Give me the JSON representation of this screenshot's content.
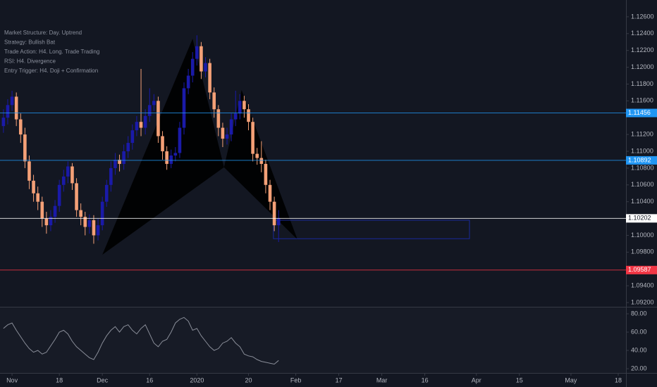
{
  "chart_data": {
    "type": "candlestick",
    "annotations": [
      "Market Structure: Day. Uptrend",
      "Strategy: Bullish Bat",
      "Trade Action: H4. Long. Trade Trading",
      "RSI: H4. Divergence",
      "Entry Trigger: H4. Doji + Confirmation"
    ],
    "x": [
      -2,
      -1,
      0,
      1,
      2,
      3,
      4,
      5,
      6,
      7,
      8,
      9,
      10,
      11,
      12,
      13,
      14,
      15,
      16,
      17,
      18,
      19,
      20,
      21,
      22,
      23,
      24,
      25,
      26,
      27,
      28,
      29,
      30,
      31,
      32,
      33,
      34,
      35,
      36,
      37,
      38,
      39,
      40,
      41,
      42,
      43,
      44,
      45,
      46,
      47,
      48,
      49,
      50,
      51,
      52,
      53,
      54,
      55,
      56,
      57,
      58,
      59,
      60,
      61,
      62
    ],
    "open": [
      1.113,
      1.114,
      1.1155,
      1.1165,
      1.1138,
      1.112,
      1.1088,
      1.1065,
      1.105,
      1.104,
      1.102,
      1.1012,
      1.1022,
      1.1035,
      1.106,
      1.107,
      1.1082,
      1.1062,
      1.103,
      1.1022,
      1.101,
      1.1018,
      1.1,
      1.1012,
      1.104,
      1.106,
      1.108,
      1.109,
      1.1085,
      1.11,
      1.111,
      1.1125,
      1.1135,
      1.1128,
      1.1142,
      1.1155,
      1.116,
      1.1118,
      1.11,
      1.1085,
      1.1095,
      1.1098,
      1.1128,
      1.1175,
      1.119,
      1.121,
      1.1225,
      1.1195,
      1.1205,
      1.117,
      1.115,
      1.1128,
      1.1115,
      1.112,
      1.1138,
      1.1145,
      1.116,
      1.115,
      1.1135,
      1.1097,
      1.1092,
      1.1085,
      1.106,
      1.104,
      1.1012
    ],
    "high": [
      1.115,
      1.1162,
      1.1172,
      1.117,
      1.1145,
      1.1128,
      1.1095,
      1.1072,
      1.1058,
      1.1046,
      1.1028,
      1.103,
      1.1042,
      1.1066,
      1.1078,
      1.1088,
      1.1086,
      1.1068,
      1.1038,
      1.1028,
      1.1025,
      1.1024,
      1.102,
      1.1046,
      1.1066,
      1.1088,
      1.1098,
      1.1096,
      1.1108,
      1.1118,
      1.1132,
      1.1142,
      1.1198,
      1.115,
      1.1175,
      1.1168,
      1.1165,
      1.1124,
      1.1106,
      1.1102,
      1.1105,
      1.1135,
      1.1182,
      1.1198,
      1.1218,
      1.1238,
      1.123,
      1.1212,
      1.121,
      1.1176,
      1.1155,
      1.1134,
      1.1128,
      1.1145,
      1.1172,
      1.1168,
      1.1166,
      1.1156,
      1.114,
      1.1104,
      1.1112,
      1.109,
      1.1066,
      1.1046,
      1.103
    ],
    "low": [
      1.1122,
      1.1132,
      1.1148,
      1.113,
      1.111,
      1.108,
      1.1055,
      1.104,
      1.103,
      1.101,
      1.1002,
      1.1005,
      1.1015,
      1.1028,
      1.1052,
      1.1062,
      1.1054,
      1.1022,
      1.1012,
      1.1,
      1.1002,
      1.099,
      1.0994,
      1.1006,
      1.1034,
      1.1052,
      1.1072,
      1.1076,
      1.1078,
      1.1092,
      1.1102,
      1.1118,
      1.1118,
      1.112,
      1.1135,
      1.1148,
      1.111,
      1.109,
      1.1078,
      1.108,
      1.1088,
      1.1092,
      1.112,
      1.1168,
      1.1182,
      1.1202,
      1.1186,
      1.1188,
      1.1162,
      1.114,
      1.1118,
      1.1105,
      1.1108,
      1.1112,
      1.113,
      1.1138,
      1.114,
      1.1125,
      1.1088,
      1.1084,
      1.1075,
      1.105,
      1.103,
      1.1005,
      1.0992
    ],
    "close": [
      1.114,
      1.1155,
      1.1165,
      1.1138,
      1.112,
      1.1088,
      1.1065,
      1.105,
      1.104,
      1.102,
      1.1012,
      1.1022,
      1.1035,
      1.106,
      1.107,
      1.1082,
      1.1062,
      1.103,
      1.1022,
      1.101,
      1.1018,
      1.1,
      1.1012,
      1.104,
      1.106,
      1.108,
      1.109,
      1.1085,
      1.11,
      1.111,
      1.1125,
      1.1135,
      1.1128,
      1.1142,
      1.1155,
      1.116,
      1.1118,
      1.11,
      1.1085,
      1.1095,
      1.1098,
      1.1128,
      1.1175,
      1.119,
      1.121,
      1.1225,
      1.1195,
      1.1205,
      1.117,
      1.115,
      1.1128,
      1.1115,
      1.112,
      1.1138,
      1.1145,
      1.116,
      1.115,
      1.1135,
      1.1097,
      1.1092,
      1.1085,
      1.106,
      1.104,
      1.1012,
      1.10202
    ],
    "up_color": "#1a1aa8",
    "down_color": "#f4a077",
    "xlim": [
      -2.8,
      142.8
    ],
    "xticks": [
      {
        "value": 0,
        "label": "Nov"
      },
      {
        "value": 11,
        "label": "18"
      },
      {
        "value": 21,
        "label": "Dec"
      },
      {
        "value": 32,
        "label": "16"
      },
      {
        "value": 43,
        "label": "2020"
      },
      {
        "value": 55,
        "label": "20"
      },
      {
        "value": 66,
        "label": "Feb"
      },
      {
        "value": 76,
        "label": "17"
      },
      {
        "value": 86,
        "label": "Mar"
      },
      {
        "value": 96,
        "label": "16"
      },
      {
        "value": 108,
        "label": "Apr"
      },
      {
        "value": 118,
        "label": "15"
      },
      {
        "value": 130,
        "label": "May"
      },
      {
        "value": 141,
        "label": "18"
      }
    ],
    "ylim": [
      1.0915,
      1.128
    ],
    "yticks": [
      {
        "value": 1.092,
        "label": "1.09200"
      },
      {
        "value": 1.094,
        "label": "1.09400"
      },
      {
        "value": 1.098,
        "label": "1.09800"
      },
      {
        "value": 1.1,
        "label": "1.10000"
      },
      {
        "value": 1.104,
        "label": "1.10400"
      },
      {
        "value": 1.106,
        "label": "1.10600"
      },
      {
        "value": 1.108,
        "label": "1.10800"
      },
      {
        "value": 1.11,
        "label": "1.11000"
      },
      {
        "value": 1.112,
        "label": "1.11200"
      },
      {
        "value": 1.116,
        "label": "1.11600"
      },
      {
        "value": 1.118,
        "label": "1.11800"
      },
      {
        "value": 1.12,
        "label": "1.12000"
      },
      {
        "value": 1.122,
        "label": "1.12200"
      },
      {
        "value": 1.124,
        "label": "1.12400"
      },
      {
        "value": 1.126,
        "label": "1.12600"
      }
    ],
    "levels": [
      {
        "value": 1.11456,
        "color": "#2196f3"
      },
      {
        "value": 1.10892,
        "color": "#2196f3"
      },
      {
        "value": 1.10202,
        "color": "#ffffff"
      },
      {
        "value": 1.09587,
        "color": "#f23645"
      }
    ],
    "pattern": {
      "x": [
        21,
        42,
        49.3,
        53.4,
        66.4
      ],
      "y": [
        1.0977,
        1.1234,
        1.1081,
        1.1173,
        1.0995
      ]
    },
    "zone": {
      "x": [
        60.8,
        106.4
      ],
      "y": [
        1.0996,
        1.1018
      ]
    },
    "rsi": {
      "values": [
        64,
        68,
        70,
        62,
        55,
        48,
        42,
        38,
        40,
        36,
        38,
        45,
        52,
        60,
        62,
        58,
        50,
        44,
        40,
        36,
        32,
        30,
        38,
        48,
        56,
        62,
        66,
        60,
        66,
        68,
        62,
        58,
        64,
        68,
        58,
        48,
        44,
        50,
        52,
        60,
        70,
        74,
        76,
        72,
        62,
        64,
        56,
        50,
        44,
        40,
        42,
        48,
        50,
        54,
        48,
        44,
        36,
        34,
        33,
        30,
        28,
        27,
        26,
        25,
        29
      ],
      "ylim": [
        15.4,
        86.9
      ],
      "yticks": [
        {
          "value": 20,
          "label": "20.00"
        },
        {
          "value": 40,
          "label": "40.00"
        },
        {
          "value": 60,
          "label": "60.00"
        },
        {
          "value": 80,
          "label": "80.00"
        }
      ],
      "color": "#8a8e99"
    }
  }
}
